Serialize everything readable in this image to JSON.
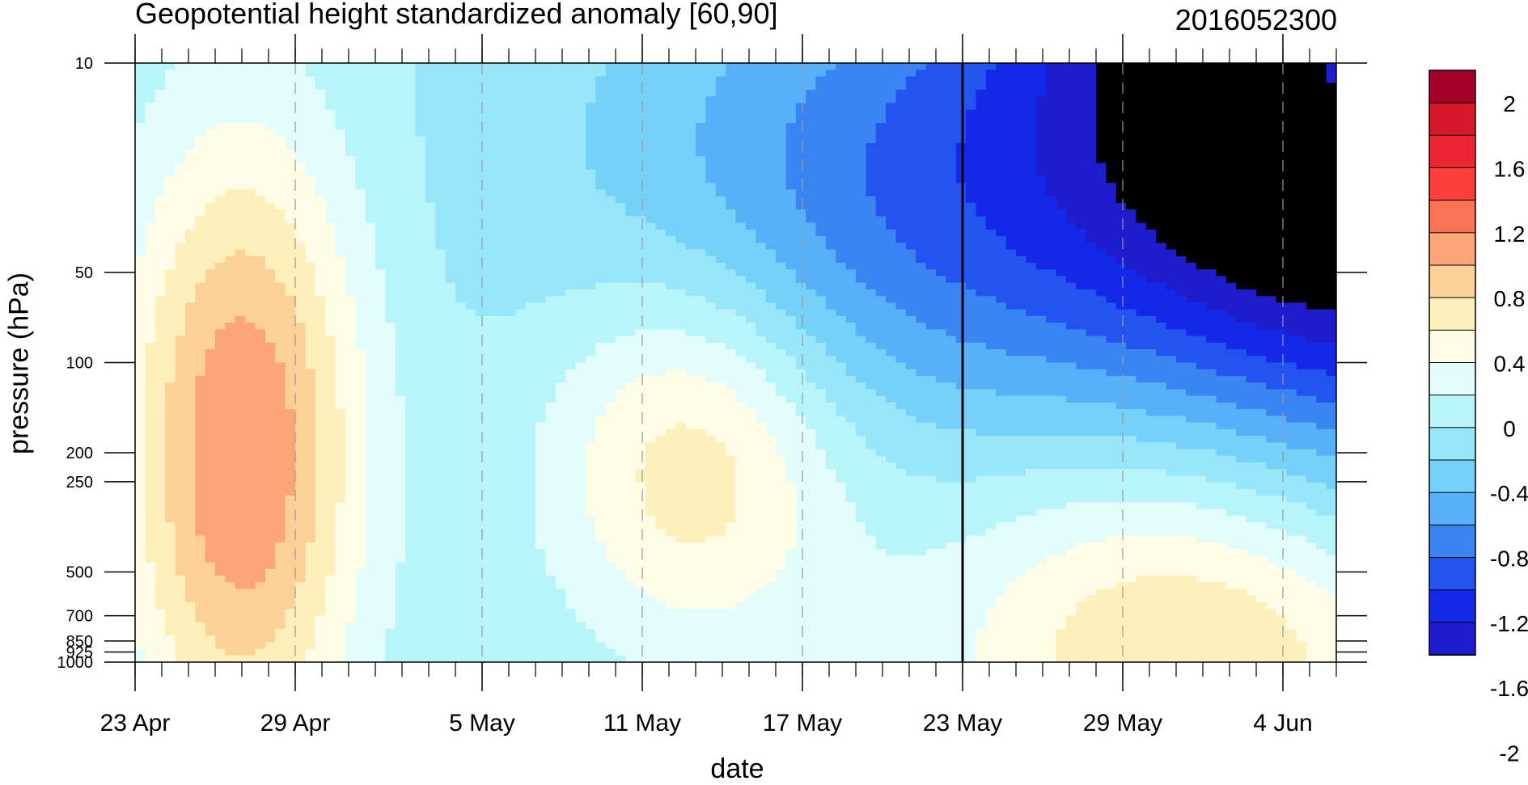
{
  "chart_data": {
    "type": "heatmap",
    "title": "Geopotential height standardized anomaly [60,90]",
    "title_right": "2016052300",
    "xlabel": "date",
    "ylabel": "pressure (hPa)",
    "x_ticks": [
      "23 Apr",
      "29 Apr",
      "5 May",
      "11 May",
      "17 May",
      "23 May",
      "29 May",
      "4 Jun"
    ],
    "x_range_days": [
      0,
      45
    ],
    "x_major_step_days": 6,
    "current_date_line": "23 May",
    "y_scale": "log",
    "y_ticks": [
      "10",
      "50",
      "100",
      "200",
      "250",
      "500",
      "700",
      "850",
      "925",
      "1000"
    ],
    "y_range_hpa": [
      1000,
      10
    ],
    "colorbar": {
      "labels": [
        "2",
        "1.6",
        "1.2",
        "0.8",
        "0.4",
        "0",
        "-0.4",
        "-0.8",
        "-1.2",
        "-1.6",
        "-2"
      ],
      "levels": [
        2.2,
        2.0,
        1.8,
        1.6,
        1.4,
        1.2,
        1.0,
        0.8,
        0.6,
        0.4,
        0.2,
        0.0,
        -0.2,
        -0.4,
        -0.6,
        -0.8,
        -1.0,
        -1.2,
        -1.4,
        -1.6,
        -1.8,
        -2.0,
        -2.2
      ],
      "colors": [
        "#a50026",
        "#d7172a",
        "#ee2633",
        "#fa3f3c",
        "#fb7355",
        "#fca576",
        "#fdd097",
        "#feefbb",
        "#fffde6",
        "#e3fdfd",
        "#b8f5fb",
        "#98e6f9",
        "#76d1f9",
        "#58b0f8",
        "#3b85f3",
        "#2454f0",
        "#1428ea",
        "#1e1dcd"
      ]
    },
    "anomalies": [
      {
        "center": [
          "27 Apr",
          200
        ],
        "value": 1.2,
        "note": "positive maximum"
      },
      {
        "center": [
          "13 May",
          200
        ],
        "value": 0.8,
        "note": "positive"
      },
      {
        "center": [
          "1 Jun",
          800
        ],
        "value": 1.0,
        "note": "positive"
      },
      {
        "center": [
          "7 Jun",
          10
        ],
        "value": -2.2,
        "note": "negative minimum"
      },
      {
        "center": [
          "19 May",
          30
        ],
        "value": -0.6,
        "note": "negative"
      }
    ]
  }
}
